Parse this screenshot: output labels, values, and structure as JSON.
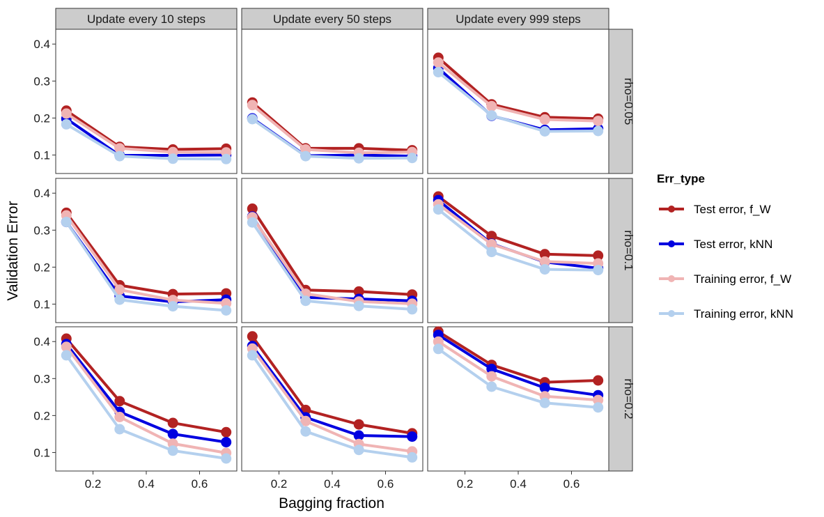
{
  "chart_data": {
    "type": "line",
    "xlabel": "Bagging fraction",
    "ylabel": "Validation Error",
    "xlim": [
      0.06,
      0.74
    ],
    "ylim": [
      0.05,
      0.44
    ],
    "xticks": [
      "0.2",
      "0.4",
      "0.6"
    ],
    "yticks": [
      "0.1",
      "0.2",
      "0.3",
      "0.4"
    ],
    "x": [
      0.1,
      0.3,
      0.5,
      0.7
    ],
    "legend": {
      "title": "Err_type",
      "placement": "right"
    },
    "columns": [
      "Update every 10 steps",
      "Update every 50 steps",
      "Update every 999 steps"
    ],
    "rows": [
      "rho=0.05",
      "rho=0.1",
      "rho=0.2"
    ],
    "series_styles": [
      {
        "name": "Test error, f_W",
        "color": "#b22222"
      },
      {
        "name": "Test error, kNN",
        "color": "#0000e0"
      },
      {
        "name": "Training error, f_W",
        "color": "#f0b4b4"
      },
      {
        "name": "Training error, kNN",
        "color": "#b4d0ee"
      }
    ],
    "panels": [
      {
        "row": 0,
        "col": 0,
        "series": [
          {
            "name": "Test error, f_W",
            "values": [
              0.22,
              0.122,
              0.115,
              0.117
            ]
          },
          {
            "name": "Test error, kNN",
            "values": [
              0.198,
              0.099,
              0.099,
              0.1
            ]
          },
          {
            "name": "Training error, f_W",
            "values": [
              0.212,
              0.118,
              0.108,
              0.107
            ]
          },
          {
            "name": "Training error, kNN",
            "values": [
              0.183,
              0.097,
              0.09,
              0.089
            ]
          }
        ]
      },
      {
        "row": 0,
        "col": 1,
        "series": [
          {
            "name": "Test error, f_W",
            "values": [
              0.242,
              0.118,
              0.118,
              0.113
            ]
          },
          {
            "name": "Test error, kNN",
            "values": [
              0.199,
              0.098,
              0.1,
              0.097
            ]
          },
          {
            "name": "Training error, f_W",
            "values": [
              0.235,
              0.115,
              0.106,
              0.108
            ]
          },
          {
            "name": "Training error, kNN",
            "values": [
              0.197,
              0.097,
              0.091,
              0.092
            ]
          }
        ]
      },
      {
        "row": 0,
        "col": 2,
        "series": [
          {
            "name": "Test error, f_W",
            "values": [
              0.363,
              0.237,
              0.202,
              0.198
            ]
          },
          {
            "name": "Test error, kNN",
            "values": [
              0.335,
              0.206,
              0.168,
              0.171
            ]
          },
          {
            "name": "Training error, f_W",
            "values": [
              0.35,
              0.232,
              0.196,
              0.192
            ]
          },
          {
            "name": "Training error, kNN",
            "values": [
              0.324,
              0.207,
              0.164,
              0.165
            ]
          }
        ]
      },
      {
        "row": 1,
        "col": 0,
        "series": [
          {
            "name": "Test error, f_W",
            "values": [
              0.347,
              0.151,
              0.127,
              0.129
            ]
          },
          {
            "name": "Test error, kNN",
            "values": [
              0.322,
              0.122,
              0.106,
              0.112
            ]
          },
          {
            "name": "Training error, f_W",
            "values": [
              0.34,
              0.139,
              0.111,
              0.102
            ]
          },
          {
            "name": "Training error, kNN",
            "values": [
              0.322,
              0.112,
              0.094,
              0.083
            ]
          }
        ]
      },
      {
        "row": 1,
        "col": 1,
        "series": [
          {
            "name": "Test error, f_W",
            "values": [
              0.358,
              0.138,
              0.134,
              0.126
            ]
          },
          {
            "name": "Test error, kNN",
            "values": [
              0.337,
              0.118,
              0.114,
              0.109
            ]
          },
          {
            "name": "Training error, f_W",
            "values": [
              0.335,
              0.128,
              0.107,
              0.101
            ]
          },
          {
            "name": "Training error, kNN",
            "values": [
              0.321,
              0.109,
              0.095,
              0.086
            ]
          }
        ]
      },
      {
        "row": 1,
        "col": 2,
        "series": [
          {
            "name": "Test error, f_W",
            "values": [
              0.391,
              0.284,
              0.235,
              0.231
            ]
          },
          {
            "name": "Test error, kNN",
            "values": [
              0.381,
              0.263,
              0.214,
              0.197
            ]
          },
          {
            "name": "Training error, f_W",
            "values": [
              0.37,
              0.262,
              0.215,
              0.21
            ]
          },
          {
            "name": "Training error, kNN",
            "values": [
              0.356,
              0.241,
              0.194,
              0.192
            ]
          }
        ]
      },
      {
        "row": 2,
        "col": 0,
        "series": [
          {
            "name": "Test error, f_W",
            "values": [
              0.408,
              0.239,
              0.18,
              0.155
            ]
          },
          {
            "name": "Test error, kNN",
            "values": [
              0.393,
              0.21,
              0.15,
              0.128
            ]
          },
          {
            "name": "Training error, f_W",
            "values": [
              0.386,
              0.196,
              0.124,
              0.099
            ]
          },
          {
            "name": "Training error, kNN",
            "values": [
              0.363,
              0.163,
              0.105,
              0.084
            ]
          }
        ]
      },
      {
        "row": 2,
        "col": 1,
        "series": [
          {
            "name": "Test error, f_W",
            "values": [
              0.414,
              0.215,
              0.176,
              0.152
            ]
          },
          {
            "name": "Test error, kNN",
            "values": [
              0.388,
              0.195,
              0.146,
              0.143
            ]
          },
          {
            "name": "Training error, f_W",
            "values": [
              0.381,
              0.185,
              0.123,
              0.103
            ]
          },
          {
            "name": "Training error, kNN",
            "values": [
              0.363,
              0.157,
              0.107,
              0.087
            ]
          }
        ]
      },
      {
        "row": 2,
        "col": 2,
        "series": [
          {
            "name": "Test error, f_W",
            "values": [
              0.427,
              0.337,
              0.29,
              0.295
            ]
          },
          {
            "name": "Test error, kNN",
            "values": [
              0.418,
              0.326,
              0.275,
              0.255
            ]
          },
          {
            "name": "Training error, f_W",
            "values": [
              0.4,
              0.306,
              0.252,
              0.242
            ]
          },
          {
            "name": "Training error, kNN",
            "values": [
              0.38,
              0.278,
              0.234,
              0.222
            ]
          }
        ]
      }
    ]
  }
}
